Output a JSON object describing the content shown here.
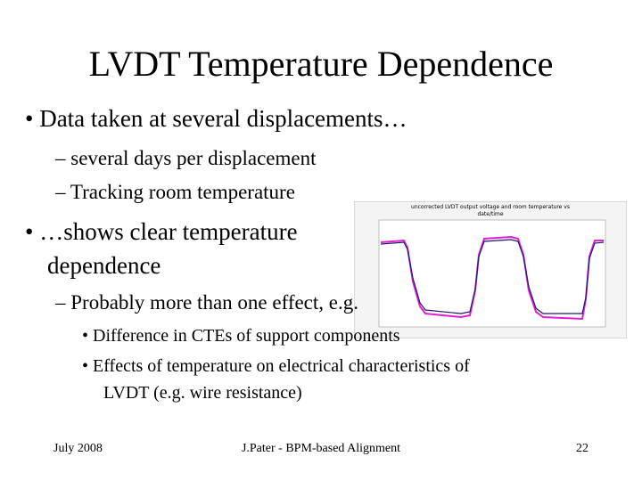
{
  "title": "LVDT Temperature Dependence",
  "bullets": [
    {
      "text": "Data taken at several displacements…",
      "sub": [
        "several days per displacement",
        "Tracking room temperature"
      ]
    },
    {
      "text": "…shows clear temperature dependence",
      "lines": [
        "…shows clear temperature",
        "dependence"
      ],
      "sub": [
        {
          "text": "Probably more than one effect, e.g.",
          "sub": [
            "Difference in CTEs of support components",
            "Effects of temperature on electrical characteristics of LVDT (e.g. wire resistance)"
          ],
          "sub_lines": [
            [
              "Difference in CTEs of support components"
            ],
            [
              "Effects of temperature on electrical characteristics of",
              "LVDT (e.g. wire resistance)"
            ]
          ]
        }
      ]
    }
  ],
  "figure": {
    "title_lines": [
      "uncorrected LVDT output voltage and room temperature vs",
      "date/time"
    ]
  },
  "footer": {
    "date": "July 2008",
    "center": "J.Pater - BPM-based Alignment",
    "page": "22"
  }
}
